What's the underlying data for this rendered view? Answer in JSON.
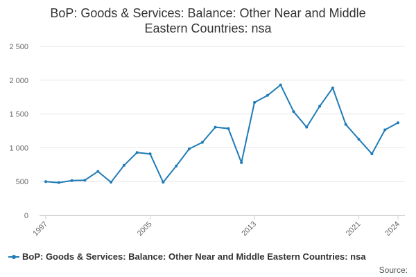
{
  "colors": {
    "series": "#1f7bb6",
    "grid": "#e6e6e6",
    "axis": "#cccccc",
    "text": "#333333"
  },
  "source_label": "Source:",
  "chart_data": {
    "type": "line",
    "title_lines": [
      "BoP: Goods & Services: Balance: Other Near and Middle",
      "Eastern Countries: nsa"
    ],
    "x": [
      1997,
      1998,
      1999,
      2000,
      2001,
      2002,
      2003,
      2004,
      2005,
      2006,
      2007,
      2008,
      2009,
      2010,
      2011,
      2012,
      2013,
      2014,
      2015,
      2016,
      2017,
      2018,
      2019,
      2020,
      2021,
      2022,
      2023,
      2024
    ],
    "xticks": [
      1997,
      2005,
      2013,
      2021,
      2024
    ],
    "yticks": [
      0,
      500,
      1000,
      1500,
      2000,
      2500
    ],
    "ytick_labels": [
      "0",
      "500",
      "1 000",
      "1 500",
      "2 000",
      "2 500"
    ],
    "ylim": [
      0,
      2500
    ],
    "grid": true,
    "legend_position": "bottom",
    "series": [
      {
        "name": "BoP: Goods & Services: Balance: Other Near and Middle Eastern Countries: nsa",
        "values": [
          500,
          485,
          515,
          520,
          650,
          490,
          740,
          930,
          910,
          490,
          730,
          985,
          1080,
          1305,
          1285,
          780,
          1670,
          1775,
          1930,
          1535,
          1305,
          1615,
          1885,
          1345,
          1125,
          910,
          1265,
          1370
        ]
      }
    ]
  }
}
